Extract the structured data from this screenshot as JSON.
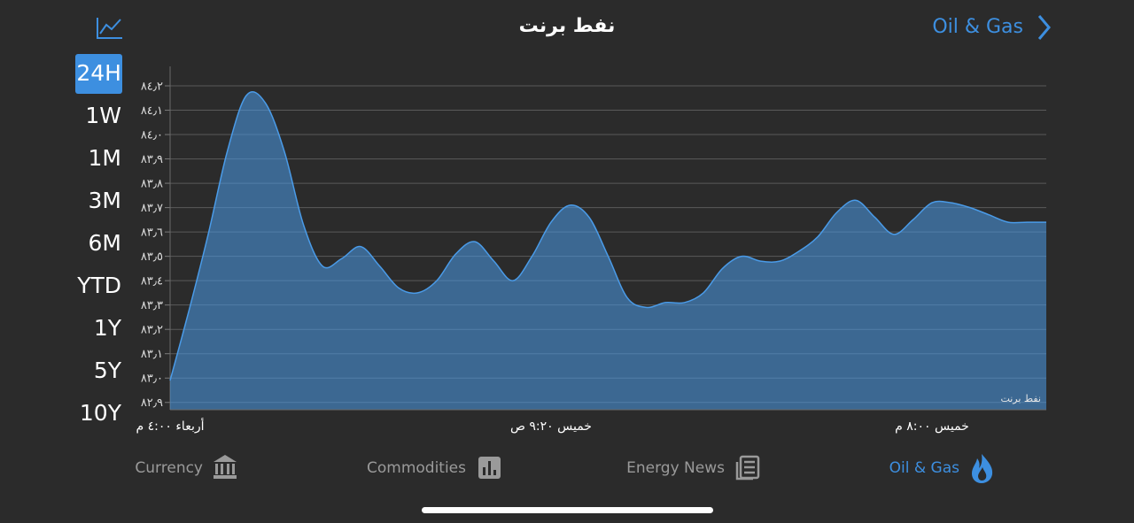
{
  "header": {
    "title": "نفط برنت",
    "back_label": "Oil & Gas"
  },
  "ranges": [
    {
      "label": "24H",
      "active": true
    },
    {
      "label": "1W",
      "active": false
    },
    {
      "label": "1M",
      "active": false
    },
    {
      "label": "3M",
      "active": false
    },
    {
      "label": "6M",
      "active": false
    },
    {
      "label": "YTD",
      "active": false
    },
    {
      "label": "1Y",
      "active": false
    },
    {
      "label": "5Y",
      "active": false
    },
    {
      "label": "10Y",
      "active": false
    }
  ],
  "tabs": [
    {
      "label": "Currency",
      "active": false
    },
    {
      "label": "Commodities",
      "active": false
    },
    {
      "label": "Energy News",
      "active": false
    },
    {
      "label": "Oil & Gas",
      "active": true
    }
  ],
  "chart_data": {
    "type": "area",
    "categories": [
      "أربعاء ٤:٠٠ م",
      null,
      null,
      null,
      null,
      null,
      null,
      null,
      null,
      null,
      null,
      null,
      null,
      null,
      null,
      null,
      null,
      null,
      null,
      null,
      "خميس ٩:٢٠ ص",
      null,
      null,
      null,
      null,
      null,
      null,
      null,
      null,
      null,
      null,
      null,
      null,
      null,
      null,
      null,
      null,
      null,
      null,
      null,
      "خميس ٨:٠٠ م",
      null,
      null,
      null,
      null,
      null,
      null
    ],
    "series": [
      {
        "name": "نفط برنت",
        "color": "#4a9be8",
        "values": [
          82.99,
          83.28,
          83.59,
          83.93,
          84.16,
          84.13,
          83.93,
          83.63,
          83.46,
          83.49,
          83.54,
          83.46,
          83.37,
          83.35,
          83.4,
          83.51,
          83.56,
          83.48,
          83.4,
          83.5,
          83.64,
          83.71,
          83.66,
          83.5,
          83.33,
          83.29,
          83.31,
          83.31,
          83.35,
          83.45,
          83.5,
          83.48,
          83.48,
          83.52,
          83.58,
          83.68,
          83.73,
          83.66,
          83.59,
          83.65,
          83.72,
          83.72,
          83.7,
          83.67,
          83.64,
          83.64,
          83.64
        ]
      }
    ],
    "ylim": [
      82.87,
      84.28
    ],
    "yticks": [
      {
        "value": 82.9,
        "label": "٨٢٫٩"
      },
      {
        "value": 83.0,
        "label": "٨٣٫٠"
      },
      {
        "value": 83.1,
        "label": "٨٣٫١"
      },
      {
        "value": 83.2,
        "label": "٨٣٫٢"
      },
      {
        "value": 83.3,
        "label": "٨٣٫٣"
      },
      {
        "value": 83.4,
        "label": "٨٣٫٤"
      },
      {
        "value": 83.5,
        "label": "٨٣٫٥"
      },
      {
        "value": 83.6,
        "label": "٨٣٫٦"
      },
      {
        "value": 83.7,
        "label": "٨٣٫٧"
      },
      {
        "value": 83.8,
        "label": "٨٣٫٨"
      },
      {
        "value": 83.9,
        "label": "٨٣٫٩"
      },
      {
        "value": 84.0,
        "label": "٨٤٫٠"
      },
      {
        "value": 84.1,
        "label": "٨٤٫١"
      },
      {
        "value": 84.2,
        "label": "٨٤٫٢"
      }
    ],
    "grid": true
  }
}
